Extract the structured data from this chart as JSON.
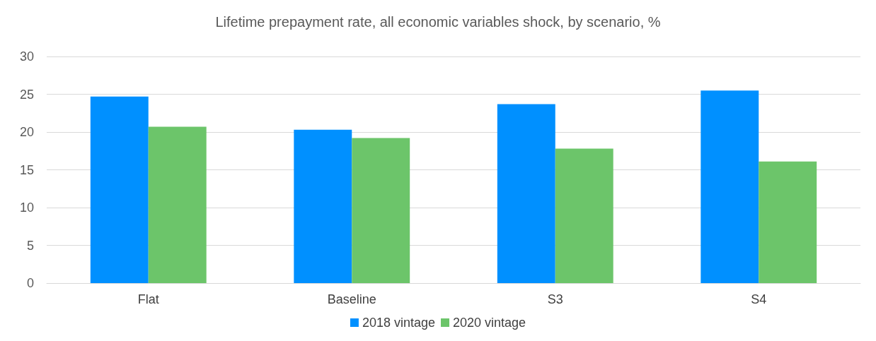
{
  "chart_data": {
    "type": "bar",
    "title": "Lifetime prepayment rate, all economic variables shock, by scenario, %",
    "categories": [
      "Flat",
      "Baseline",
      "S3",
      "S4"
    ],
    "series": [
      {
        "name": "2018 vintage",
        "color": "#0090ff",
        "values": [
          24.7,
          20.3,
          23.7,
          25.5
        ]
      },
      {
        "name": "2020 vintage",
        "color": "#6cc56a",
        "values": [
          20.7,
          19.2,
          17.8,
          16.1
        ]
      }
    ],
    "ylim": [
      0,
      30
    ],
    "yticks": [
      0,
      5,
      10,
      15,
      20,
      25,
      30
    ],
    "grid": "y",
    "legend": "bottom"
  }
}
